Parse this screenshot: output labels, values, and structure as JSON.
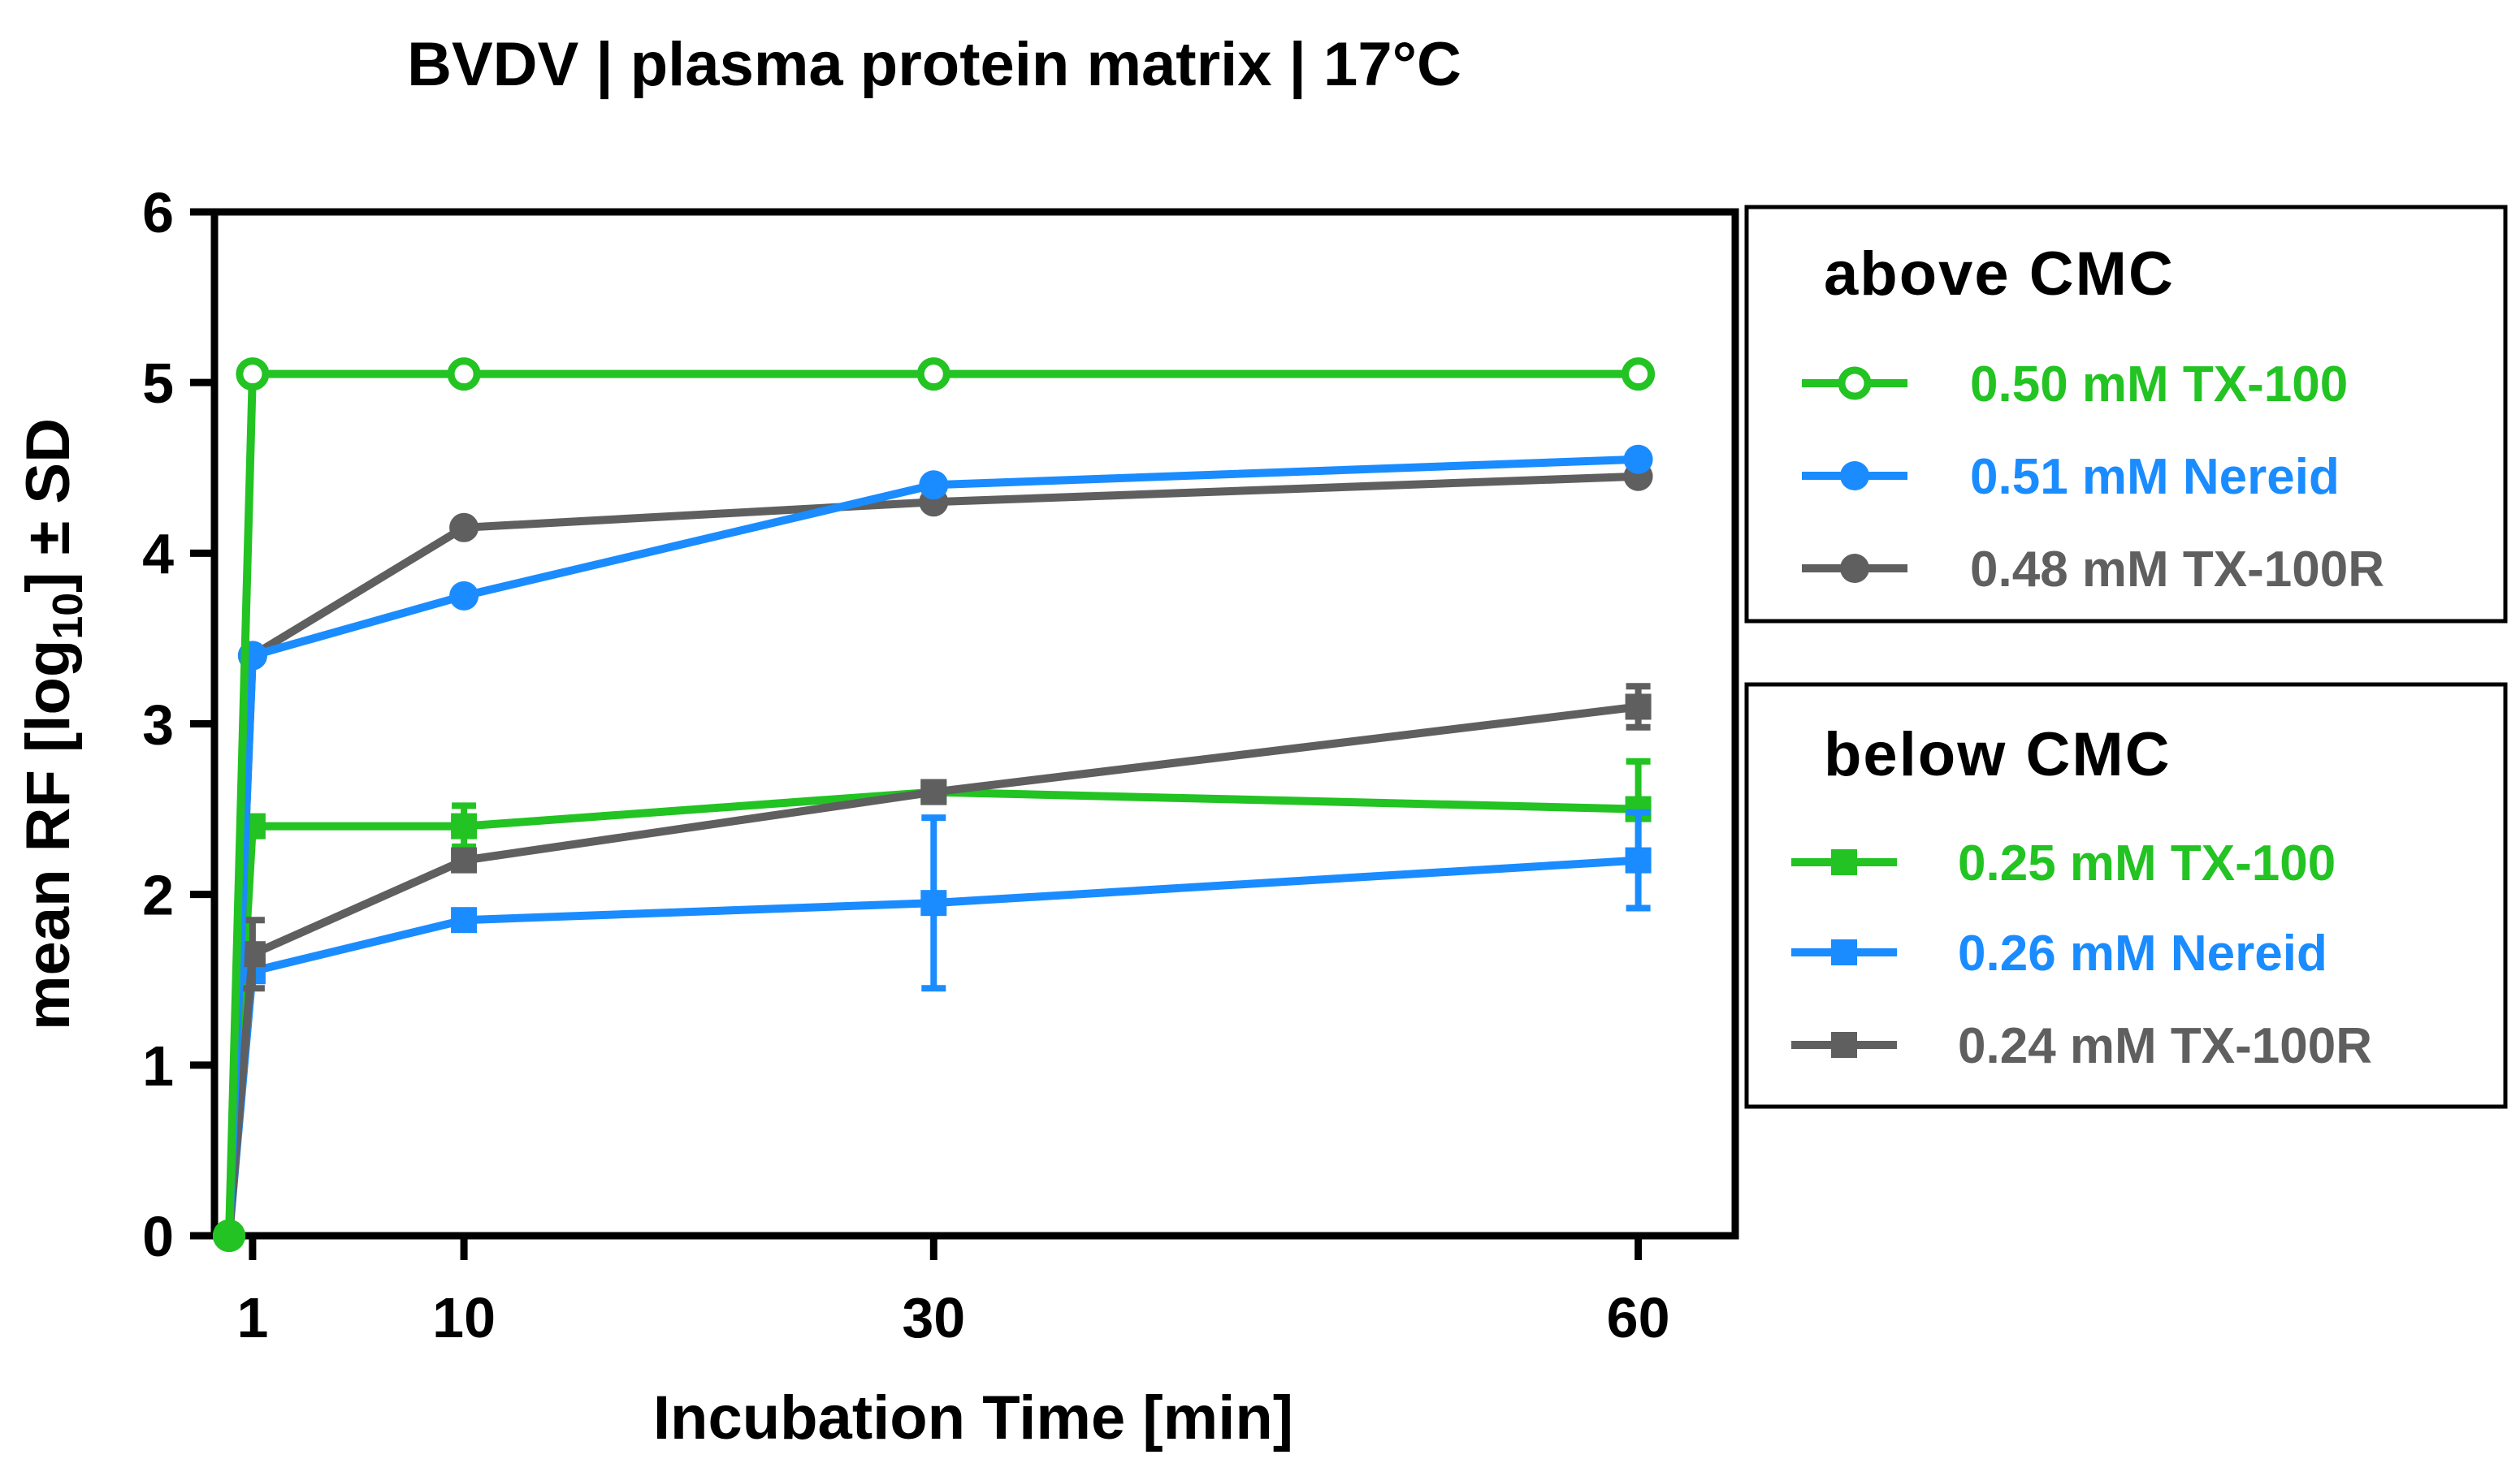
{
  "chart_data": {
    "type": "line",
    "title": "BVDV | plasma protein matrix | 17°C",
    "xlabel": "Incubation Time [min]",
    "ylabel": {
      "prefix": "mean RF [log",
      "subscript": "10",
      "suffix": "] ± SD"
    },
    "xlim": [
      0,
      62
    ],
    "ylim": [
      0,
      6
    ],
    "x_ticks": [
      1,
      10,
      30,
      60
    ],
    "y_ticks": [
      0,
      1,
      2,
      3,
      4,
      5,
      6
    ],
    "legend_groups": [
      {
        "title": "above CMC",
        "series_indices": [
          0,
          1,
          2
        ]
      },
      {
        "title": "below CMC",
        "series_indices": [
          3,
          4,
          5
        ]
      }
    ],
    "series": [
      {
        "name": "0.50 mM TX-100",
        "color": "#22c322",
        "marker": "circle-open",
        "x": [
          0,
          1,
          10,
          30,
          60
        ],
        "y": [
          0,
          5.05,
          5.05,
          5.05,
          5.05
        ],
        "sd": [
          0,
          0,
          0,
          0,
          0
        ]
      },
      {
        "name": "0.51 mM Nereid",
        "color": "#1a8cff",
        "marker": "circle",
        "x": [
          0,
          1,
          10,
          30,
          60
        ],
        "y": [
          0,
          3.4,
          3.75,
          4.4,
          4.55
        ],
        "sd": [
          0,
          0,
          0,
          0,
          0
        ]
      },
      {
        "name": "0.48 mM TX-100R",
        "color": "#5f5f5f",
        "marker": "circle",
        "x": [
          0,
          1,
          10,
          30,
          60
        ],
        "y": [
          0,
          3.4,
          4.15,
          4.3,
          4.45
        ],
        "sd": [
          0,
          0,
          0,
          0,
          0
        ]
      },
      {
        "name": "0.25 mM TX-100",
        "color": "#22c322",
        "marker": "square",
        "x": [
          0,
          1,
          10,
          30,
          60
        ],
        "y": [
          0,
          2.4,
          2.4,
          2.6,
          2.5
        ],
        "sd": [
          0,
          0.05,
          0.12,
          0,
          0.28
        ]
      },
      {
        "name": "0.26 mM Nereid",
        "color": "#1a8cff",
        "marker": "square",
        "x": [
          0,
          1,
          10,
          30,
          60
        ],
        "y": [
          0,
          1.55,
          1.85,
          1.95,
          2.2
        ],
        "sd": [
          0,
          0.05,
          0,
          0.5,
          0.28
        ]
      },
      {
        "name": "0.24 mM TX-100R",
        "color": "#5f5f5f",
        "marker": "square",
        "x": [
          0,
          1,
          10,
          30,
          60
        ],
        "y": [
          0,
          1.65,
          2.2,
          2.6,
          3.1
        ],
        "sd": [
          0,
          0.2,
          0,
          0,
          0.12
        ]
      }
    ]
  }
}
